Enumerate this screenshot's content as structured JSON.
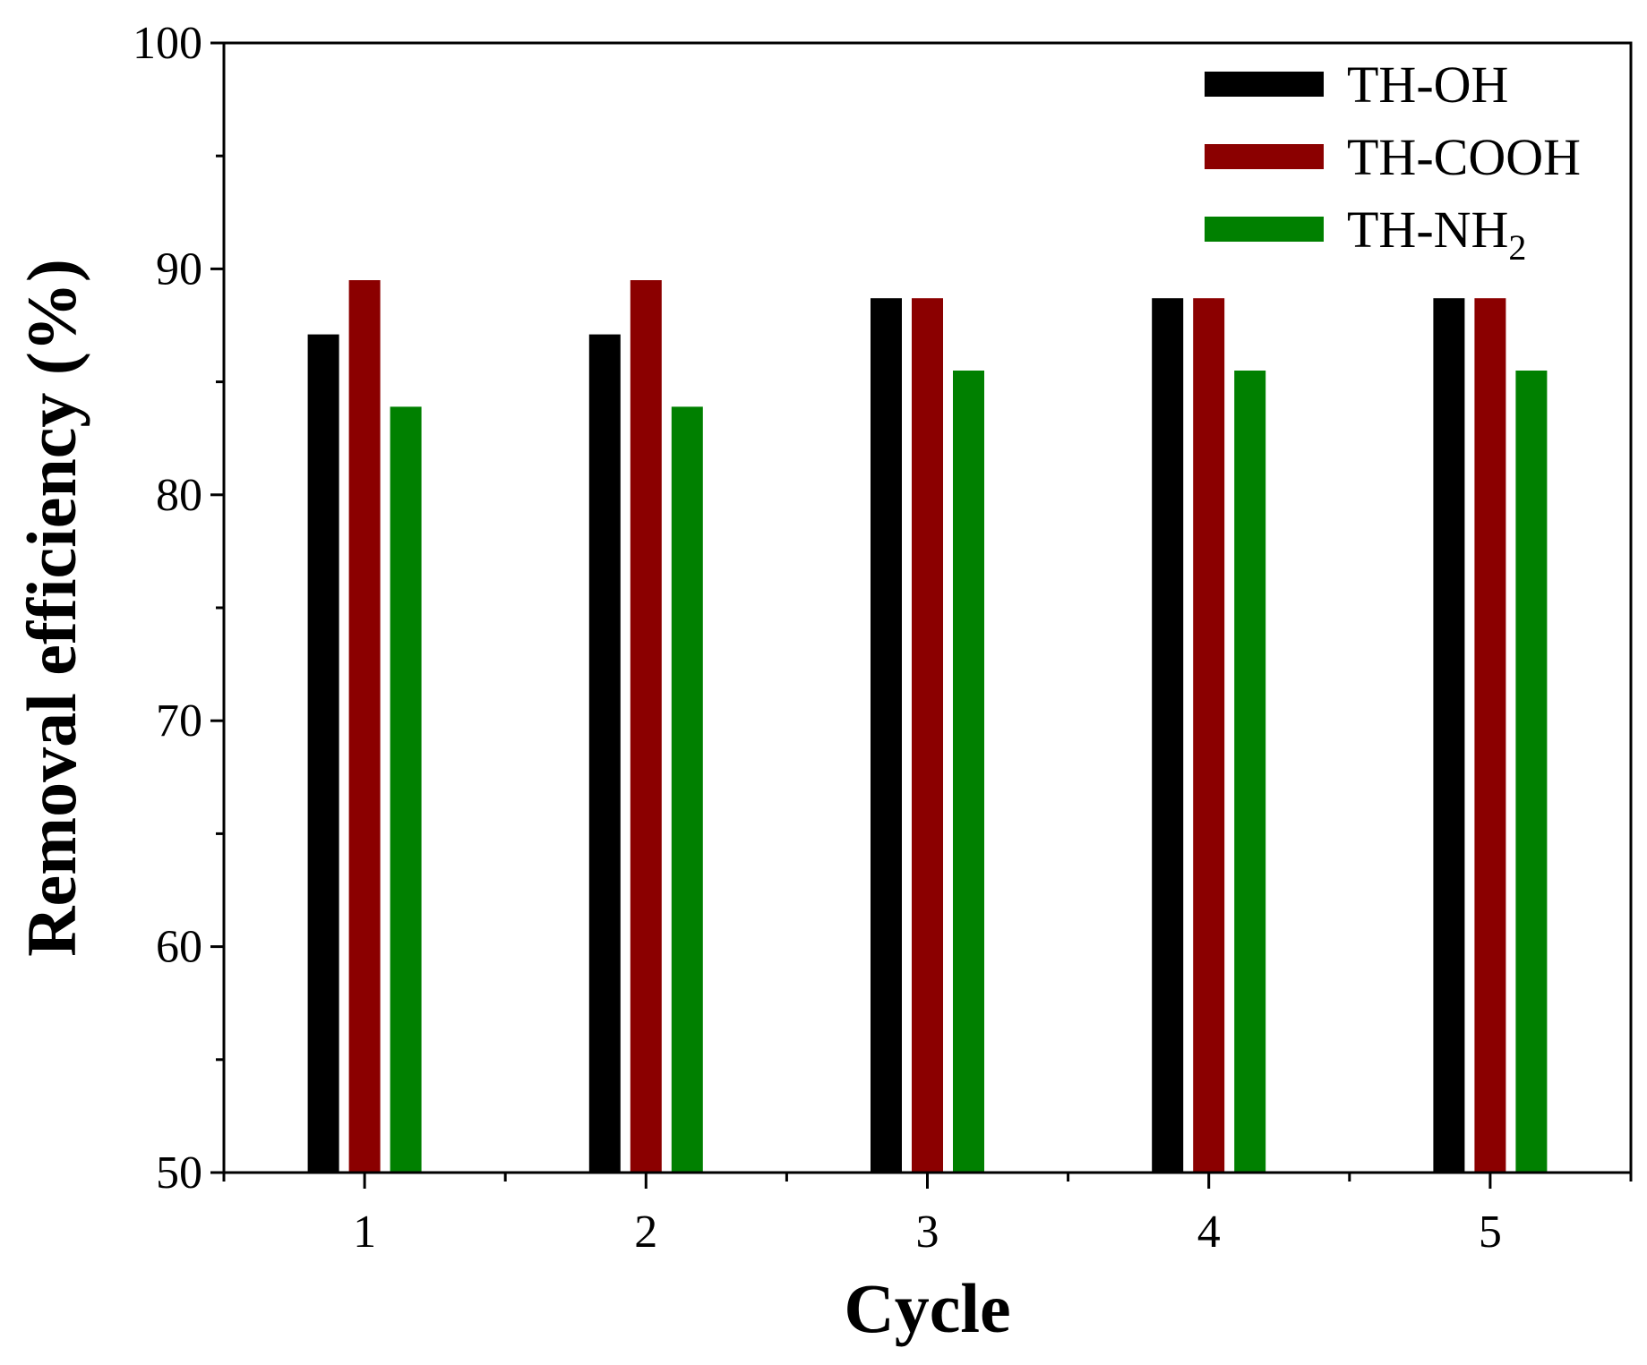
{
  "chart_data": {
    "type": "bar",
    "title": "",
    "xlabel": "Cycle",
    "ylabel": "Removal efficiency (%)",
    "categories": [
      "1",
      "2",
      "3",
      "4",
      "5"
    ],
    "ylim": [
      50,
      100
    ],
    "yticks": [
      "50",
      "60",
      "70",
      "80",
      "90",
      "100"
    ],
    "grid": false,
    "legend_position": "top-right",
    "series": [
      {
        "name": "TH-OH",
        "label_main": "TH-OH",
        "label_sub": "",
        "color": "#000000",
        "values": [
          87.1,
          87.1,
          88.7,
          88.7,
          88.7
        ]
      },
      {
        "name": "TH-COOH",
        "label_main": "TH-COOH",
        "label_sub": "",
        "color": "#8b0000",
        "values": [
          89.5,
          89.5,
          88.7,
          88.7,
          88.7
        ]
      },
      {
        "name": "TH-NH2",
        "label_main": "TH-NH",
        "label_sub": "2",
        "color": "#008000",
        "values": [
          83.9,
          83.9,
          85.5,
          85.5,
          85.5
        ]
      }
    ]
  }
}
